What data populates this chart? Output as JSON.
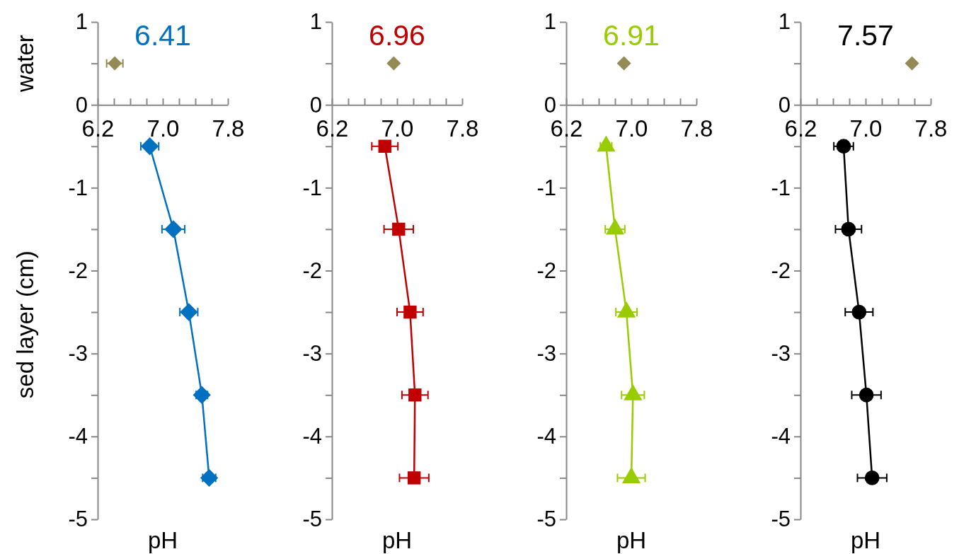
{
  "chart_data": [
    {
      "type": "line",
      "title": "6.41",
      "xlabel": "pH",
      "ylabel": "sed layer (cm)",
      "annotations": [
        "water"
      ],
      "xlim": [
        6.2,
        7.8
      ],
      "ylim": [
        -5,
        1
      ],
      "xticks": [
        {
          "value": 6.2,
          "label": "6.2"
        },
        {
          "value": 6.4,
          "label": null
        },
        {
          "value": 6.6,
          "label": null
        },
        {
          "value": 6.8,
          "label": null
        },
        {
          "value": 7,
          "label": "7.0"
        },
        {
          "value": 7.2,
          "label": null
        },
        {
          "value": 7.4,
          "label": null
        },
        {
          "value": 7.6,
          "label": null
        },
        {
          "value": 7.8,
          "label": "7.8"
        }
      ],
      "yticks": [
        -5,
        {
          "value": -4.5,
          "label": null
        },
        -4,
        {
          "value": -3.5,
          "label": null
        },
        -3,
        {
          "value": -2.5,
          "label": null
        },
        -2,
        {
          "value": -1.5,
          "label": null
        },
        -1,
        {
          "value": -0.5,
          "label": null
        },
        0,
        {
          "value": 0.5,
          "label": null
        },
        1
      ],
      "series": [
        {
          "marker": "diamond",
          "color": "#0070c0",
          "x": [
            6.84,
            7.13,
            7.32,
            7.48,
            7.57
          ],
          "values": [
            -0.5,
            -1.5,
            -2.5,
            -3.5,
            -4.5
          ],
          "xerrors": [
            0.11,
            0.14,
            0.11,
            0.07,
            0.08
          ]
        },
        {
          "type": "scatter",
          "marker": "diamond",
          "color": "#948a54",
          "x": [
            6.41
          ],
          "values": [
            0.5
          ],
          "xerrors": [
            0.1
          ]
        }
      ]
    },
    {
      "type": "line",
      "title": "6.96",
      "xlabel": "pH",
      "xlim": [
        6.2,
        7.8
      ],
      "ylim": [
        -5,
        1
      ],
      "xticks": [
        {
          "value": 6.2,
          "label": "6.2"
        },
        {
          "value": 6.4,
          "label": null
        },
        {
          "value": 6.6,
          "label": null
        },
        {
          "value": 6.8,
          "label": null
        },
        {
          "value": 7,
          "label": "7.0"
        },
        {
          "value": 7.2,
          "label": null
        },
        {
          "value": 7.4,
          "label": null
        },
        {
          "value": 7.6,
          "label": null
        },
        {
          "value": 7.8,
          "label": "7.8"
        }
      ],
      "yticks": [
        -5,
        {
          "value": -4.5,
          "label": null
        },
        -4,
        {
          "value": -3.5,
          "label": null
        },
        -3,
        {
          "value": -2.5,
          "label": null
        },
        -2,
        {
          "value": -1.5,
          "label": null
        },
        -1,
        {
          "value": -0.5,
          "label": null
        },
        0,
        {
          "value": 0.5,
          "label": null
        },
        1
      ],
      "series": [
        {
          "marker": "square",
          "color": "#c00000",
          "x": [
            6.85,
            7.02,
            7.16,
            7.22,
            7.21
          ],
          "values": [
            -0.5,
            -1.5,
            -2.5,
            -3.5,
            -4.5
          ],
          "xerrors": [
            0.16,
            0.18,
            0.16,
            0.16,
            0.18
          ]
        },
        {
          "type": "scatter",
          "marker": "diamond",
          "color": "#948a54",
          "x": [
            6.96
          ],
          "values": [
            0.5
          ]
        }
      ]
    },
    {
      "type": "line",
      "title": "6.91",
      "xlabel": "pH",
      "xlim": [
        6.2,
        7.8
      ],
      "ylim": [
        -5,
        1
      ],
      "xticks": [
        {
          "value": 6.2,
          "label": "6.2"
        },
        {
          "value": 6.4,
          "label": null
        },
        {
          "value": 6.6,
          "label": null
        },
        {
          "value": 6.8,
          "label": null
        },
        {
          "value": 7,
          "label": "7.0"
        },
        {
          "value": 7.2,
          "label": null
        },
        {
          "value": 7.4,
          "label": null
        },
        {
          "value": 7.6,
          "label": null
        },
        {
          "value": 7.8,
          "label": "7.8"
        }
      ],
      "yticks": [
        -5,
        {
          "value": -4.5,
          "label": null
        },
        -4,
        {
          "value": -3.5,
          "label": null
        },
        -3,
        {
          "value": -2.5,
          "label": null
        },
        -2,
        {
          "value": -1.5,
          "label": null
        },
        -1,
        {
          "value": -0.5,
          "label": null
        },
        0,
        {
          "value": 0.5,
          "label": null
        },
        1
      ],
      "series": [
        {
          "marker": "triangle",
          "color": "#99cc00",
          "x": [
            6.69,
            6.8,
            6.94,
            7.02,
            7.0
          ],
          "values": [
            -0.5,
            -1.5,
            -2.5,
            -3.5,
            -4.5
          ],
          "xerrors": [
            0.07,
            0.12,
            0.13,
            0.14,
            0.17
          ]
        },
        {
          "type": "scatter",
          "marker": "diamond",
          "color": "#948a54",
          "x": [
            6.91
          ],
          "values": [
            0.5
          ]
        }
      ]
    },
    {
      "type": "line",
      "title": "7.57",
      "xlabel": "pH",
      "xlim": [
        6.2,
        7.8
      ],
      "ylim": [
        -5,
        1
      ],
      "xticks": [
        {
          "value": 6.2,
          "label": "6.2"
        },
        {
          "value": 6.4,
          "label": null
        },
        {
          "value": 6.6,
          "label": null
        },
        {
          "value": 6.8,
          "label": null
        },
        {
          "value": 7,
          "label": "7.0"
        },
        {
          "value": 7.2,
          "label": null
        },
        {
          "value": 7.4,
          "label": null
        },
        {
          "value": 7.6,
          "label": null
        },
        {
          "value": 7.8,
          "label": "7.8"
        }
      ],
      "yticks": [
        -5,
        {
          "value": -4.5,
          "label": null
        },
        -4,
        {
          "value": -3.5,
          "label": null
        },
        -3,
        {
          "value": -2.5,
          "label": null
        },
        -2,
        {
          "value": -1.5,
          "label": null
        },
        -1,
        {
          "value": -0.5,
          "label": null
        },
        0,
        {
          "value": 0.5,
          "label": null
        },
        1
      ],
      "series": [
        {
          "marker": "circle",
          "color": "#000000",
          "x": [
            6.73,
            6.79,
            6.92,
            7.01,
            7.08
          ],
          "values": [
            -0.5,
            -1.5,
            -2.5,
            -3.5,
            -4.5
          ],
          "xerrors": [
            0.12,
            0.16,
            0.17,
            0.18,
            0.18
          ]
        },
        {
          "type": "scatter",
          "marker": "diamond",
          "color": "#948a54",
          "x": [
            7.57
          ],
          "values": [
            0.5
          ]
        }
      ]
    }
  ]
}
